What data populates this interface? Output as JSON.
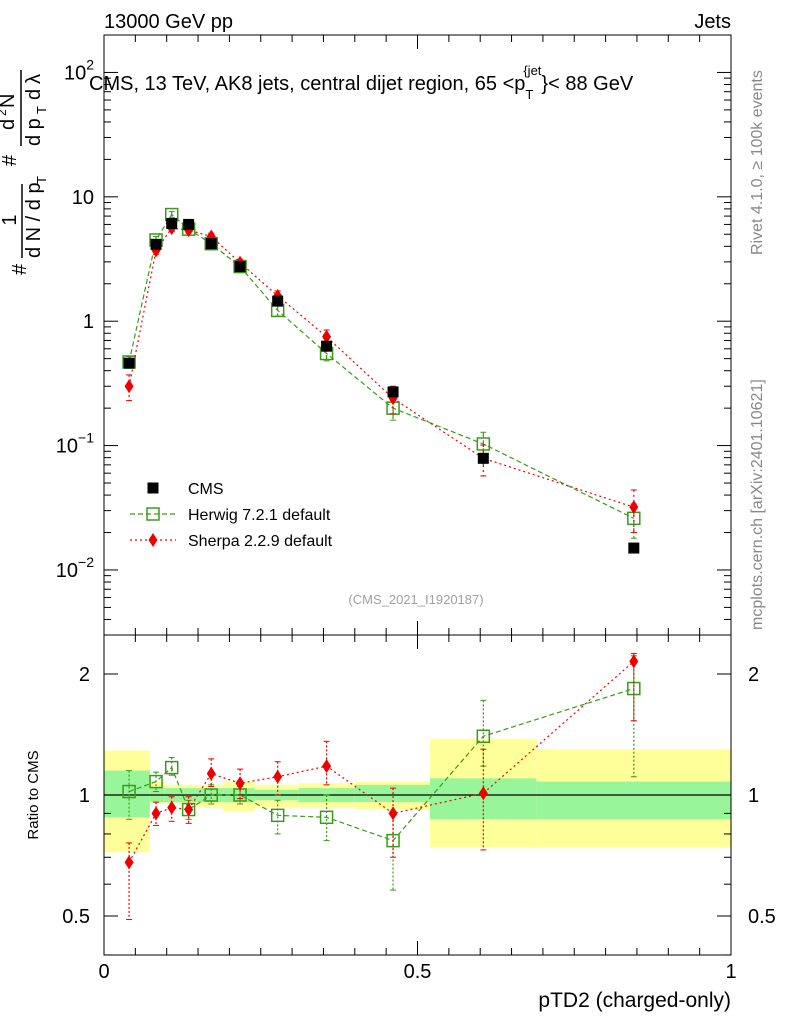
{
  "header": {
    "left": "13000 GeV pp",
    "right": "Jets"
  },
  "side_labels": {
    "rivet": "Rivet 4.1.0, ≥ 100k events",
    "mcplots": "mcplots.cern.ch [arXiv:2401.10621]"
  },
  "analysis_id": "(CMS_2021_I1920187)",
  "colors": {
    "cms": "#000000",
    "herwig": "#3a9a1a",
    "sherpa": "#ee0000",
    "band_inner": "#99f599",
    "band_outer": "#ffff99"
  },
  "chart_data": [
    {
      "type": "scatter",
      "title": "CMS, 13 TeV, AK8 jets, central dijet region, 65 < p_T^{jet} < 88 GeV",
      "title_parts": {
        "pre": "CMS, 13 TeV, AK8 jets, central dijet region, 65 <p",
        "sub": "T",
        "sup": "{jet",
        "post": "}< 88 GeV"
      },
      "ylabel": "1/(dN/dp_T) d²N/(dp_T dλ)",
      "yscale": "log",
      "ylim": [
        0.003,
        200
      ],
      "xlim": [
        0,
        1
      ],
      "ytick_labels": [
        {
          "value": 0.01,
          "base": "10",
          "exp": "−2"
        },
        {
          "value": 0.1,
          "base": "10",
          "exp": "−1"
        },
        {
          "value": 1,
          "base": "1",
          "exp": ""
        },
        {
          "value": 10,
          "base": "10",
          "exp": ""
        },
        {
          "value": 100,
          "base": "10",
          "exp": "2"
        }
      ],
      "legend": {
        "position": "bottom-left",
        "entries": [
          "CMS",
          "Herwig 7.2.1 default",
          "Sherpa 2.2.9 default"
        ]
      },
      "series": [
        {
          "name": "CMS",
          "x": [
            0.04,
            0.083,
            0.108,
            0.135,
            0.171,
            0.217,
            0.277,
            0.355,
            0.461,
            0.605,
            0.845
          ],
          "y": [
            0.46,
            4.15,
            6.1,
            6.0,
            4.2,
            2.75,
            1.45,
            0.63,
            0.27,
            0.079,
            0.015
          ],
          "yerr": [
            0,
            0,
            0,
            0,
            0,
            0,
            0,
            0,
            0,
            0,
            0
          ]
        },
        {
          "name": "Herwig 7.2.1 default",
          "x": [
            0.04,
            0.083,
            0.108,
            0.135,
            0.171,
            0.217,
            0.277,
            0.355,
            0.461,
            0.605,
            0.845
          ],
          "y": [
            0.47,
            4.5,
            7.2,
            5.5,
            4.2,
            2.75,
            1.22,
            0.55,
            0.2,
            0.103,
            0.026
          ],
          "yerr": [
            0.05,
            0.3,
            0.4,
            0.35,
            0.2,
            0.15,
            0.12,
            0.07,
            0.04,
            0.025,
            0.008
          ]
        },
        {
          "name": "Sherpa 2.2.9 default",
          "x": [
            0.04,
            0.083,
            0.108,
            0.135,
            0.171,
            0.217,
            0.277,
            0.355,
            0.461,
            0.605,
            0.845
          ],
          "y": [
            0.3,
            3.7,
            5.6,
            5.4,
            4.8,
            2.95,
            1.6,
            0.75,
            0.24,
            0.079,
            0.032
          ],
          "yerr": [
            0.07,
            0.25,
            0.35,
            0.3,
            0.3,
            0.2,
            0.15,
            0.1,
            0.06,
            0.022,
            0.012
          ]
        }
      ]
    },
    {
      "type": "scatter",
      "title": "",
      "xlabel": "pTD2 (charged-only)",
      "ylabel": "Ratio to CMS",
      "yscale": "log",
      "ylim": [
        0.4,
        2.4
      ],
      "xlim": [
        0,
        1
      ],
      "xticks": [
        0,
        0.5,
        1
      ],
      "xtick_labels": [
        "0",
        "0.5",
        "1"
      ],
      "yticks": [
        0.5,
        1,
        2
      ],
      "ytick_labels": [
        "0.5",
        "1",
        "2"
      ],
      "reference_line": 1,
      "bands": {
        "bin_edges": [
          0,
          0.073,
          0.097,
          0.122,
          0.15,
          0.19,
          0.24,
          0.31,
          0.4,
          0.52,
          0.69,
          1.0
        ],
        "inner": [
          [
            0.88,
            1.15
          ],
          [
            0.96,
            1.04
          ],
          [
            0.96,
            1.04
          ],
          [
            0.96,
            1.04
          ],
          [
            0.96,
            1.04
          ],
          [
            0.96,
            1.04
          ],
          [
            0.97,
            1.03
          ],
          [
            0.96,
            1.04
          ],
          [
            0.96,
            1.06
          ],
          [
            0.87,
            1.1
          ],
          [
            0.87,
            1.08
          ]
        ],
        "outer": [
          [
            0.72,
            1.29
          ],
          [
            0.95,
            1.08
          ],
          [
            0.95,
            1.06
          ],
          [
            0.95,
            1.06
          ],
          [
            0.93,
            1.06
          ],
          [
            0.91,
            1.08
          ],
          [
            0.93,
            1.06
          ],
          [
            0.93,
            1.07
          ],
          [
            0.92,
            1.08
          ],
          [
            0.74,
            1.38
          ],
          [
            0.74,
            1.3
          ]
        ]
      },
      "series": [
        {
          "name": "Herwig 7.2.1 default",
          "x": [
            0.04,
            0.083,
            0.108,
            0.135,
            0.171,
            0.217,
            0.277,
            0.355,
            0.461,
            0.605,
            0.845
          ],
          "y": [
            1.02,
            1.08,
            1.17,
            0.92,
            1.0,
            1.0,
            0.89,
            0.88,
            0.77,
            1.4,
            1.84
          ],
          "yerr_lo": [
            0.15,
            0.06,
            0.05,
            0.05,
            0.05,
            0.05,
            0.09,
            0.11,
            0.19,
            0.22,
            0.73
          ],
          "yerr_hi": [
            0.13,
            0.06,
            0.07,
            0.05,
            0.06,
            0.05,
            0.08,
            0.12,
            0.14,
            0.32,
            0.38
          ]
        },
        {
          "name": "Sherpa 2.2.9 default",
          "x": [
            0.04,
            0.083,
            0.108,
            0.135,
            0.171,
            0.217,
            0.277,
            0.355,
            0.461,
            0.605,
            0.845
          ],
          "y": [
            0.68,
            0.9,
            0.93,
            0.92,
            1.13,
            1.07,
            1.11,
            1.18,
            0.9,
            1.01,
            2.15
          ],
          "yerr_lo": [
            0.19,
            0.06,
            0.07,
            0.07,
            0.08,
            0.09,
            0.11,
            0.12,
            0.2,
            0.28,
            0.62
          ],
          "yerr_hi": [
            0.08,
            0.06,
            0.06,
            0.07,
            0.1,
            0.09,
            0.1,
            0.18,
            0.14,
            0.29,
            0.1
          ]
        }
      ]
    }
  ]
}
